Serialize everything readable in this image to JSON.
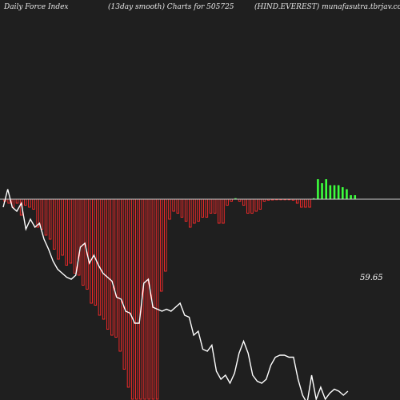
{
  "header": {
    "left": "Daily Force  Index",
    "center": "(13day smooth) Charts for 505725",
    "right": "(HIND.EVEREST) munafasutra.tbrjav.com"
  },
  "chart_data": {
    "type": "bar",
    "title": "(13day smooth) Charts for 505725",
    "xlabel": "",
    "ylabel": "",
    "colors": {
      "negative": "#ff2a2a",
      "positive": "#3cff3c",
      "zero_line": "#cfcfcf",
      "line": "#ffffff",
      "background": "#1f1f1f"
    },
    "ylim": [
      -100,
      25
    ],
    "bars": [
      -1,
      -2,
      -4,
      -2,
      -8,
      -3,
      -4,
      -5,
      -14,
      -15,
      -18,
      -20,
      -25,
      -30,
      -28,
      -33,
      -32,
      -37,
      -38,
      -43,
      -45,
      -52,
      -53,
      -58,
      -60,
      -65,
      -68,
      -69,
      -76,
      -85,
      -94,
      -100,
      -100,
      -100,
      -100,
      -100,
      -100,
      -100,
      -46,
      -36,
      -10,
      -6,
      -7,
      -9,
      -11,
      -14,
      -12,
      -11,
      -9,
      -9,
      -7,
      -7,
      -12,
      -12,
      -3,
      -1,
      0.5,
      -1,
      -3,
      -7,
      -7,
      -6,
      -5,
      -1,
      -0.5,
      -0.4,
      -0.3,
      -0.3,
      -0.3,
      -0.2,
      -0.5,
      -2,
      -4,
      -4,
      -4,
      0.5,
      10,
      8,
      10,
      7,
      7,
      7,
      6,
      5,
      2,
      2
    ],
    "line": {
      "label": "59.65",
      "y": [
        -4,
        5,
        -4,
        -6,
        -2,
        -15,
        -10,
        -14,
        -12,
        -20,
        -25,
        -31,
        -35,
        -37,
        -39,
        -40,
        -38,
        -24,
        -22,
        -32,
        -28,
        -33,
        -37,
        -39,
        -41,
        -49,
        -50,
        -56,
        -57,
        -62,
        -62,
        -42,
        -40,
        -54,
        -55,
        -56,
        -55,
        -56,
        -54,
        -52,
        -58,
        -59,
        -68,
        -66,
        -75,
        -76,
        -73,
        -86,
        -90,
        -88,
        -92,
        -87,
        -77,
        -71,
        -77,
        -88,
        -91,
        -92,
        -90,
        -83,
        -79,
        -78,
        -78,
        -79,
        -79,
        -90,
        -98,
        -102,
        -88,
        -100,
        -94,
        -100,
        -97,
        -95,
        -96,
        -98,
        -96
      ]
    }
  }
}
